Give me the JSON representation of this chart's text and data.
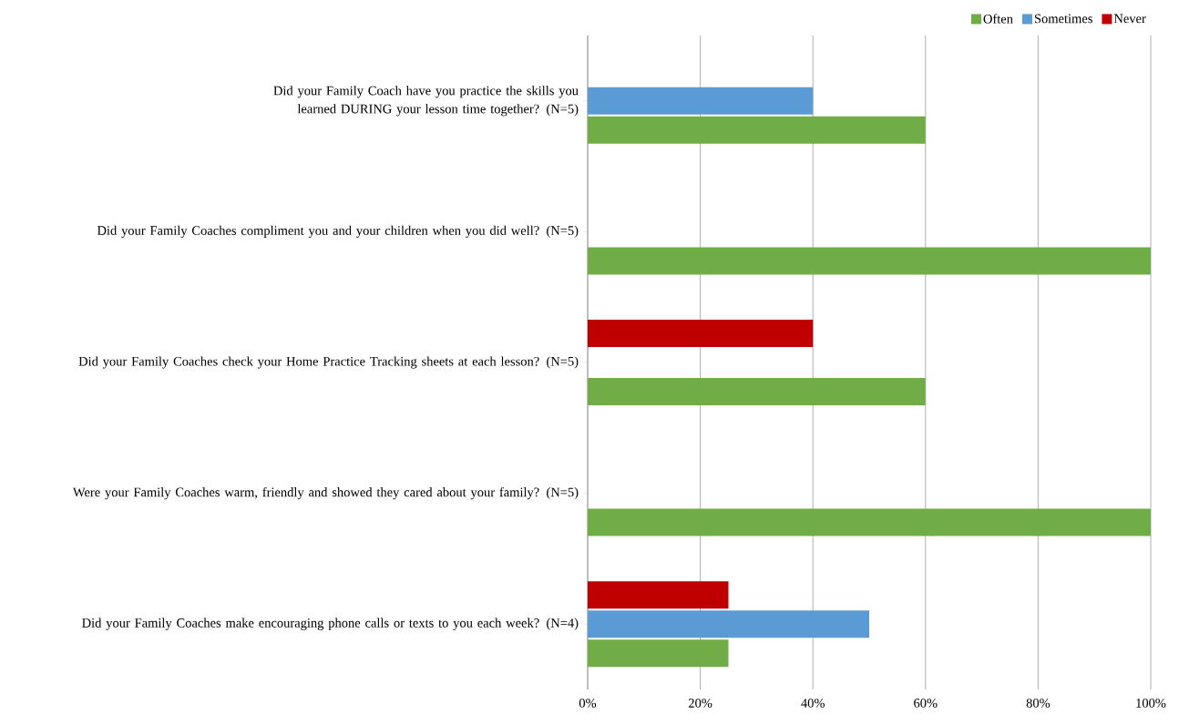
{
  "chart_data": {
    "type": "bar",
    "orientation": "horizontal",
    "categories": [
      "Did your Family Coach have you practice the skills you learned DURING your lesson time together? (N=5)",
      "Did your Family Coaches compliment you and your children when you did well? (N=5)",
      "Did your Family Coaches check your Home Practice Tracking sheets at each lesson? (N=5)",
      "Were your Family Coaches warm, friendly and showed they cared about your family? (N=5)",
      "Did your Family Coaches make encouraging phone calls or texts to you each week? (N=4)"
    ],
    "series": [
      {
        "name": "Often",
        "color": "#70ad47",
        "values": [
          60,
          100,
          60,
          100,
          25
        ]
      },
      {
        "name": "Sometimes",
        "color": "#5b9bd5",
        "values": [
          40,
          0,
          0,
          0,
          50
        ]
      },
      {
        "name": "Never",
        "color": "#c00000",
        "values": [
          0,
          0,
          40,
          0,
          25
        ]
      }
    ],
    "xlim": [
      0,
      100
    ],
    "xticks": [
      {
        "value": 0,
        "label": "0%"
      },
      {
        "value": 20,
        "label": "20%"
      },
      {
        "value": 40,
        "label": "40%"
      },
      {
        "value": 60,
        "label": "60%"
      },
      {
        "value": 80,
        "label": "80%"
      },
      {
        "value": 100,
        "label": "100%"
      }
    ],
    "grid": "x",
    "legend": "top right"
  }
}
